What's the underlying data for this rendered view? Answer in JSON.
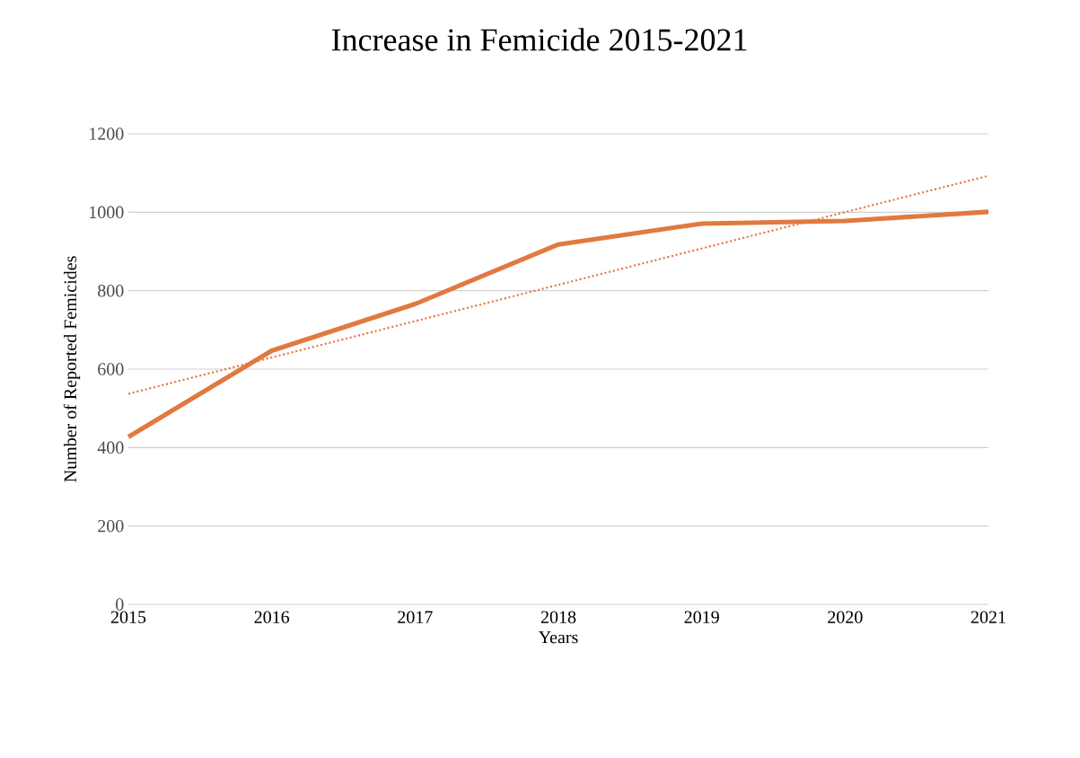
{
  "chart_data": {
    "type": "line",
    "title": "Increase in Femicide 2015-2021",
    "xlabel": "Years",
    "ylabel": "Number of Reported Femicides",
    "x": [
      2015,
      2016,
      2017,
      2018,
      2019,
      2020,
      2021
    ],
    "series": [
      {
        "color": "#e2793f",
        "values": [
          427,
          647,
          766,
          918,
          971,
          978,
          1001
        ]
      },
      {
        "type": "line",
        "line_style": "dotted",
        "color": "#e2793f",
        "x": [
          2015,
          2021
        ],
        "values": [
          537,
          1093
        ]
      }
    ],
    "xlim": [
      2015,
      2021
    ],
    "xticks": [
      2015,
      2016,
      2017,
      2018,
      2019,
      2020,
      2021
    ],
    "ylim": [
      0,
      1200
    ],
    "yticks": [
      0,
      200,
      400,
      600,
      800,
      1000,
      1200
    ],
    "grid": "y",
    "marker": "none",
    "line_style": "solid"
  }
}
